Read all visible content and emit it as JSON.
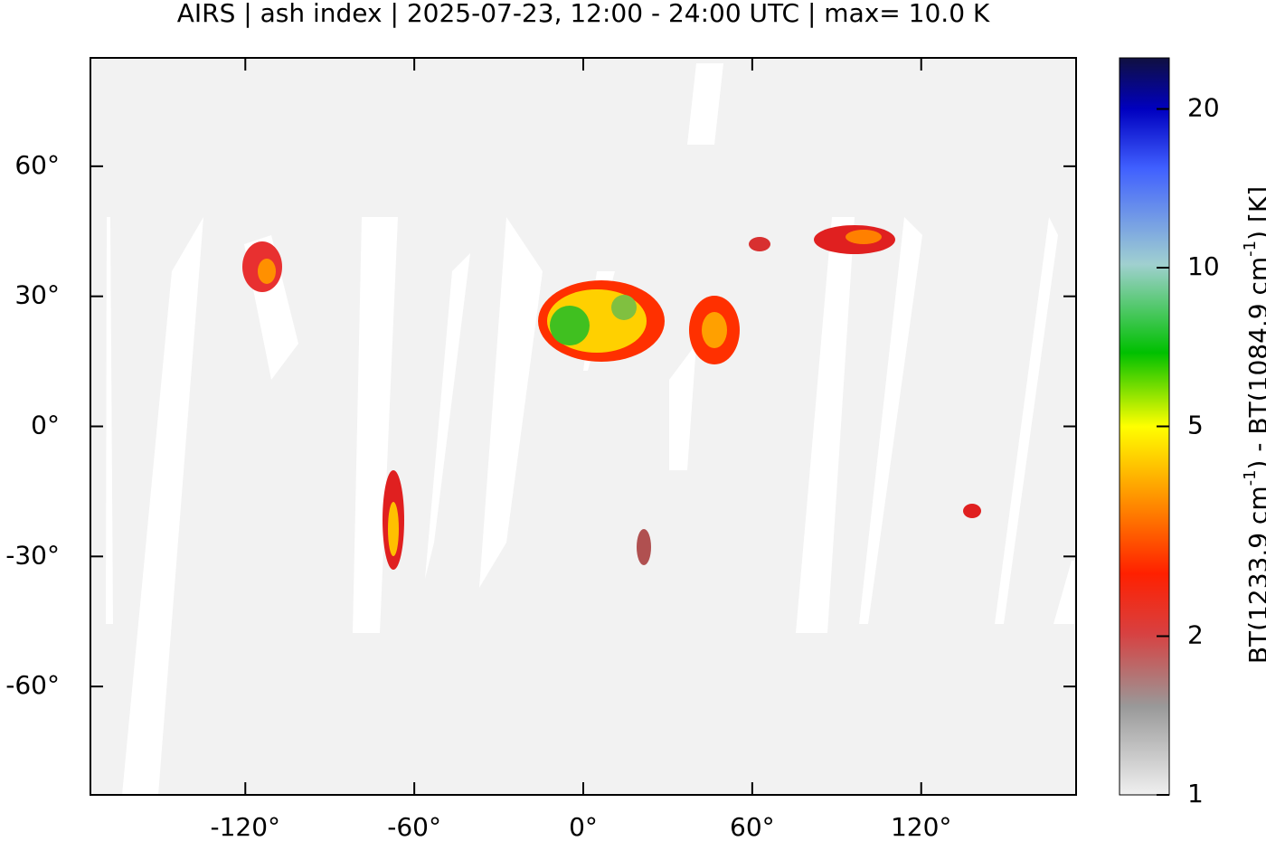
{
  "chart_data": {
    "type": "map",
    "title": "AIRS | ash index | 2025-07-23, 12:00 - 24:00 UTC | max= 10.0 K",
    "xlim": [
      -175,
      175
    ],
    "ylim": [
      -85,
      85
    ],
    "xticks": [
      {
        "value": -120,
        "label": "-120°"
      },
      {
        "value": -60,
        "label": "-60°"
      },
      {
        "value": 0,
        "label": "0°"
      },
      {
        "value": 60,
        "label": "60°"
      },
      {
        "value": 120,
        "label": "120°"
      }
    ],
    "yticks": [
      {
        "value": 60,
        "label": "60°"
      },
      {
        "value": 30,
        "label": "30°"
      },
      {
        "value": 0,
        "label": "0°"
      },
      {
        "value": -30,
        "label": "-30°"
      },
      {
        "value": -60,
        "label": "-60°"
      }
    ],
    "colorbar": {
      "scale": "log",
      "lim": [
        1,
        25
      ],
      "ticks": [
        1,
        2,
        5,
        10,
        20
      ],
      "label": [
        "BT(1233.9 cm",
        "-1",
        ") - BT(1084.9 cm",
        "-1",
        ") [K]"
      ]
    }
  }
}
